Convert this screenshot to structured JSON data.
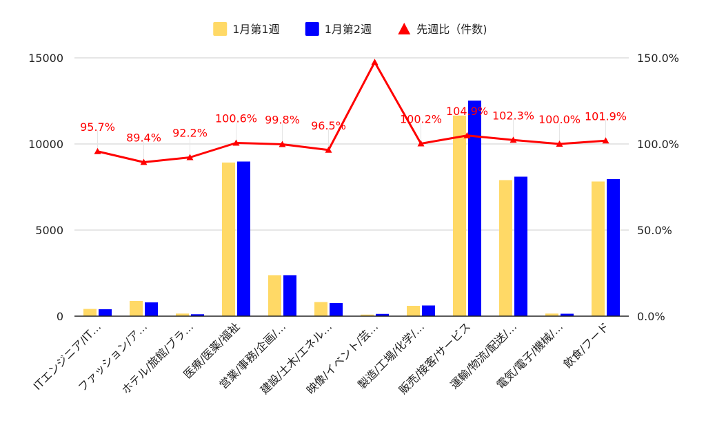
{
  "chart_data": {
    "type": "bar",
    "categories": [
      "ITエンジニア/IT…",
      "ファッション/ア…",
      "ホテル/旅館/ブラ…",
      "医療/医薬/福祉",
      "営業/事務/企画/…",
      "建設/土木/エネル…",
      "映像/イベント/芸…",
      "製造/工場/化学/…",
      "販売/接客/サービス",
      "運輸/物流/配送/…",
      "電気/電子/機械/…",
      "飲食/フード"
    ],
    "series": [
      {
        "name": "1月第1週",
        "type": "bar",
        "axis": "left",
        "color": "#ffd966",
        "values": [
          420,
          880,
          150,
          8920,
          2380,
          820,
          90,
          600,
          11650,
          7900,
          150,
          7820
        ]
      },
      {
        "name": "1月第2週",
        "type": "bar",
        "axis": "left",
        "color": "#0000ff",
        "values": [
          400,
          800,
          110,
          8980,
          2380,
          760,
          130,
          620,
          12520,
          8100,
          140,
          7960
        ]
      },
      {
        "name": "先週比（件数)",
        "type": "line",
        "axis": "right",
        "color": "#ff0000",
        "marker": "triangle",
        "values": [
          95.7,
          89.4,
          92.2,
          100.6,
          99.8,
          96.5,
          147.5,
          100.2,
          104.9,
          102.3,
          100.0,
          101.9
        ],
        "labels": [
          "95.7%",
          "89.4%",
          "92.2%",
          "100.6%",
          "99.8%",
          "96.5%",
          "",
          "100.2%",
          "104.9%",
          "102.3%",
          "100.0%",
          "101.9%"
        ]
      }
    ],
    "y_left": {
      "min": 0,
      "max": 15000,
      "ticks": [
        "0",
        "5000",
        "10000",
        "15000"
      ],
      "tick_values": [
        0,
        5000,
        10000,
        15000
      ]
    },
    "y_right": {
      "min": 0,
      "max": 150,
      "ticks": [
        "0.0%",
        "50.0%",
        "100.0%",
        "150.0%"
      ],
      "tick_values": [
        0,
        50,
        100,
        150
      ]
    },
    "grid": true,
    "legend_position": "top-center",
    "title": "",
    "xlabel": "",
    "ylabel": ""
  }
}
